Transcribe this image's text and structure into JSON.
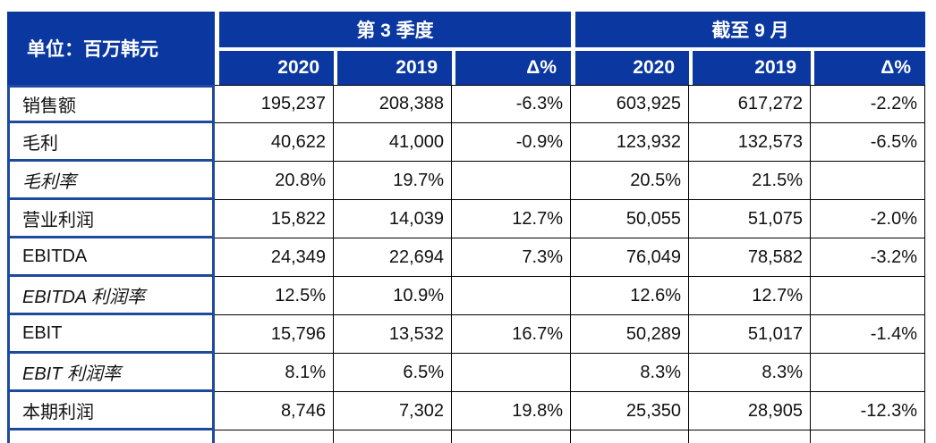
{
  "unit_label": "单位：百万韩元",
  "groups": {
    "q3": "第 3 季度",
    "ytd": "截至 9 月"
  },
  "subheaders": [
    "2020",
    "2019",
    "Δ%",
    "2020",
    "2019",
    "Δ%"
  ],
  "colors": {
    "header_bg": "#0B38A0",
    "label_border": "#1D4A9F",
    "grid_line": "#000000",
    "header_text": "#FFFFFF",
    "body_text": "#111111"
  },
  "rows": [
    {
      "label": "销售额",
      "italic": false,
      "cells": [
        "195,237",
        "208,388",
        "-6.3%",
        "603,925",
        "617,272",
        "-2.2%"
      ]
    },
    {
      "label": "毛利",
      "italic": false,
      "cells": [
        "40,622",
        "41,000",
        "-0.9%",
        "123,932",
        "132,573",
        "-6.5%"
      ]
    },
    {
      "label": "毛利率",
      "italic": true,
      "cells": [
        "20.8%",
        "19.7%",
        "",
        "20.5%",
        "21.5%",
        ""
      ]
    },
    {
      "label": "营业利润",
      "italic": false,
      "cells": [
        "15,822",
        "14,039",
        "12.7%",
        "50,055",
        "51,075",
        "-2.0%"
      ]
    },
    {
      "label": "EBITDA",
      "italic": false,
      "cells": [
        "24,349",
        "22,694",
        "7.3%",
        "76,049",
        "78,582",
        "-3.2%"
      ]
    },
    {
      "label": "EBITDA 利润率",
      "italic": true,
      "cells": [
        "12.5%",
        "10.9%",
        "",
        "12.6%",
        "12.7%",
        ""
      ]
    },
    {
      "label": "EBIT",
      "italic": false,
      "cells": [
        "15,796",
        "13,532",
        "16.7%",
        "50,289",
        "51,017",
        "-1.4%"
      ]
    },
    {
      "label": "EBIT 利润率",
      "italic": true,
      "cells": [
        "8.1%",
        "6.5%",
        "",
        "8.3%",
        "8.3%",
        ""
      ]
    },
    {
      "label": "本期利润",
      "italic": false,
      "cells": [
        "8,746",
        "7,302",
        "19.8%",
        "25,350",
        "28,905",
        "-12.3%"
      ]
    }
  ]
}
